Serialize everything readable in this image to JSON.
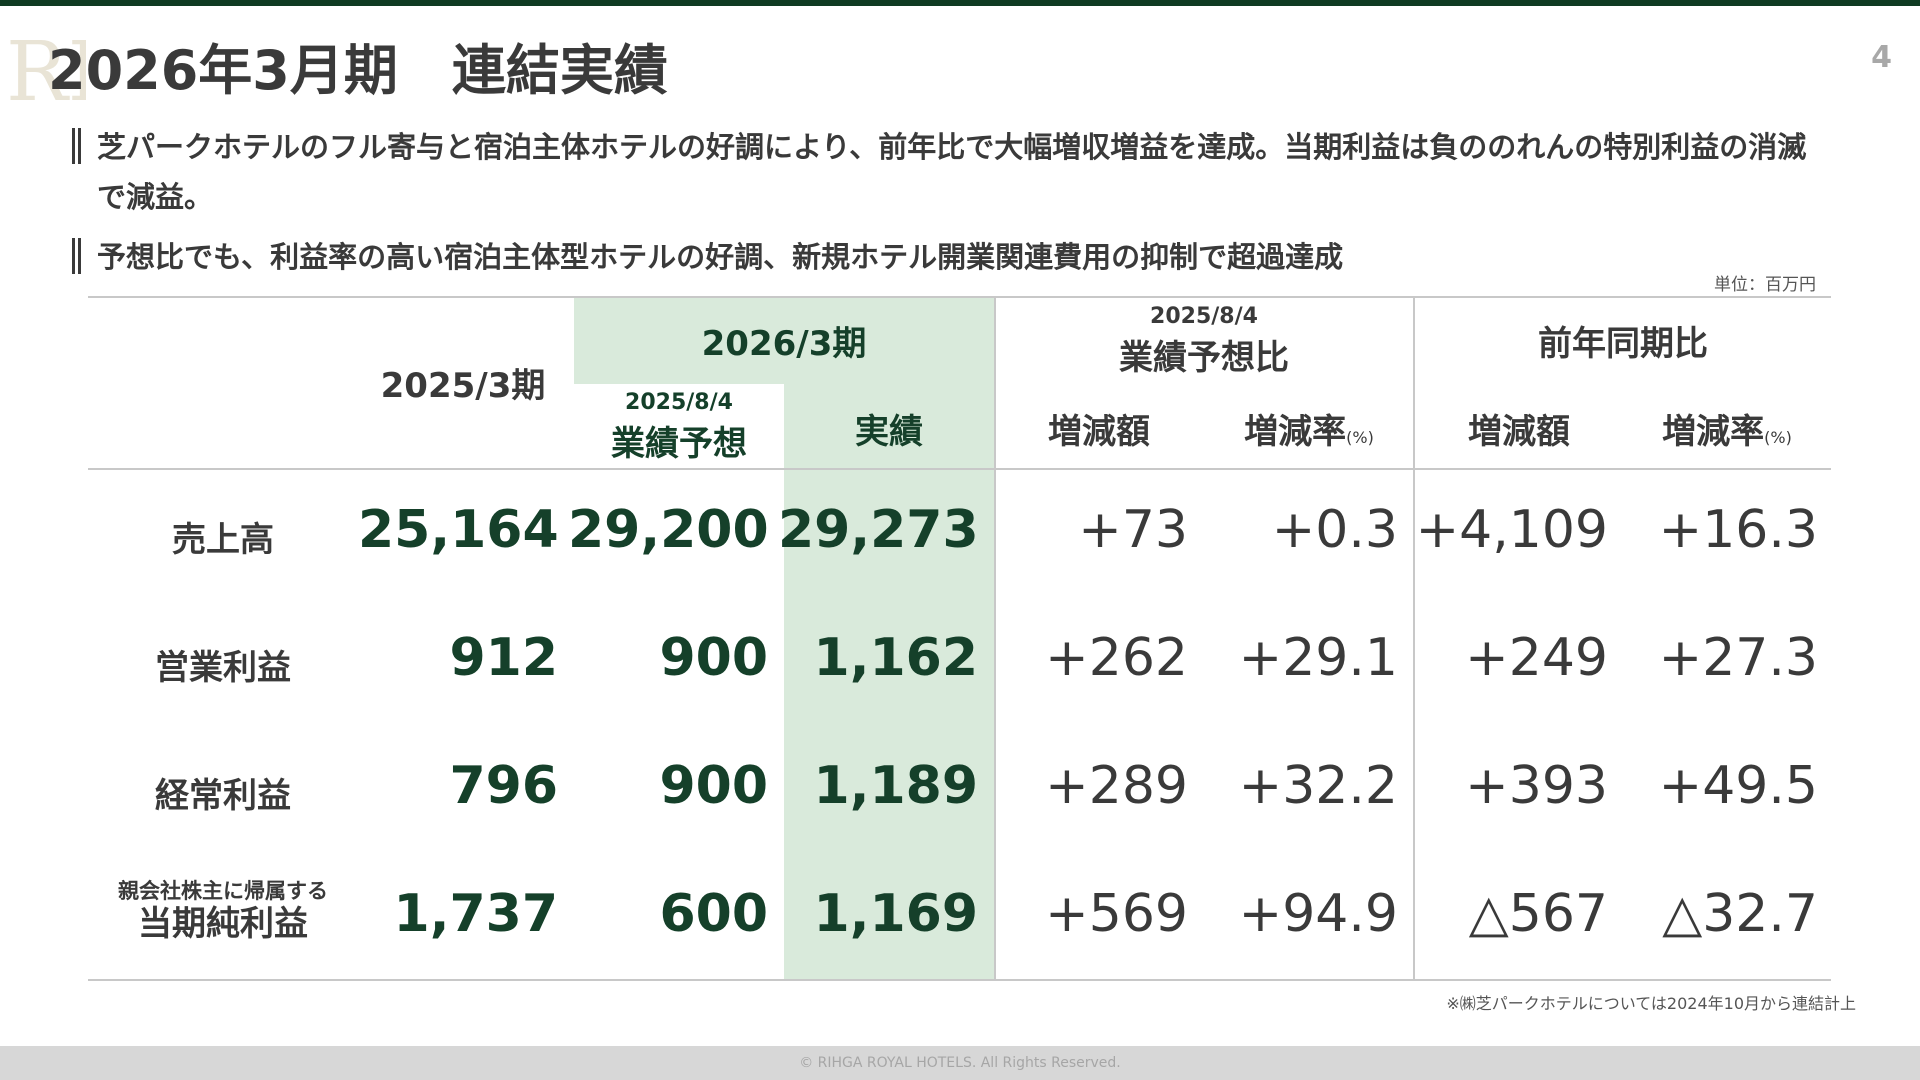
{
  "header": {
    "logo_mark": "RR",
    "title": "2026年3月期　連結実績",
    "page_number": "4",
    "accent_color": "#0f3b22"
  },
  "bullets": [
    "芝パークホテルのフル寄与と宿泊主体ホテルの好調により、前年比で大幅増収増益を達成。当期利益は負ののれんの特別利益の消滅で減益。",
    "予想比でも、利益率の高い宿泊主体型ホテルの好調、新規ホテル開業関連費用の抑制で超過達成"
  ],
  "unit_label": "単位：百万円",
  "table": {
    "col_prev_year": "2025/3期",
    "col_current_group": "2026/3期",
    "forecast_date": "2025/8/4",
    "col_forecast": "業績予想",
    "col_actual": "実績",
    "group_vs_forecast_date": "2025/8/4",
    "group_vs_forecast": "業績予想比",
    "group_vs_prior": "前年同期比",
    "sub_change_amount": "増減額",
    "sub_change_rate": "増減率",
    "pct_unit": "(%)",
    "highlight_color": "#d9eadb",
    "rows": [
      {
        "label_sub": "",
        "label": "売上高",
        "prev": "25,164",
        "forecast": "29,200",
        "actual": "29,273",
        "vs_fc_amt": "+73",
        "vs_fc_rate": "+0.3",
        "vs_py_amt": "+4,109",
        "vs_py_rate": "+16.3"
      },
      {
        "label_sub": "",
        "label": "営業利益",
        "prev": "912",
        "forecast": "900",
        "actual": "1,162",
        "vs_fc_amt": "+262",
        "vs_fc_rate": "+29.1",
        "vs_py_amt": "+249",
        "vs_py_rate": "+27.3"
      },
      {
        "label_sub": "",
        "label": "経常利益",
        "prev": "796",
        "forecast": "900",
        "actual": "1,189",
        "vs_fc_amt": "+289",
        "vs_fc_rate": "+32.2",
        "vs_py_amt": "+393",
        "vs_py_rate": "+49.5"
      },
      {
        "label_sub": "親会社株主に帰属する",
        "label": "当期純利益",
        "prev": "1,737",
        "forecast": "600",
        "actual": "1,169",
        "vs_fc_amt": "+569",
        "vs_fc_rate": "+94.9",
        "vs_py_amt": "△567",
        "vs_py_rate": "△32.7"
      }
    ]
  },
  "footnote": "※㈱芝パークホテルについては2024年10月から連結計上",
  "footer": "© RIHGA ROYAL HOTELS. All Rights Reserved."
}
